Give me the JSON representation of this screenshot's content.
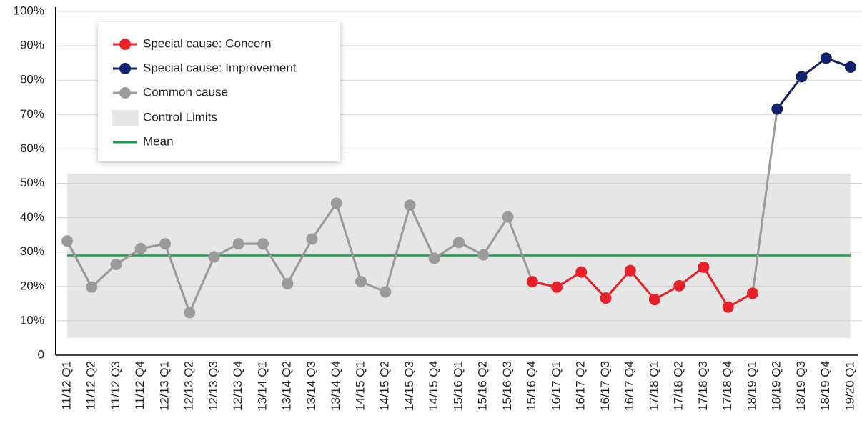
{
  "chart_data": {
    "type": "line",
    "categories": [
      "11/12 Q1",
      "11/12 Q2",
      "11/12 Q3",
      "11/12 Q4",
      "12/13 Q1",
      "12/13 Q2",
      "12/13 Q3",
      "12/13 Q4",
      "13/14 Q1",
      "13/14 Q2",
      "13/14 Q3",
      "13/14 Q4",
      "14/15 Q1",
      "14/15 Q2",
      "14/15 Q3",
      "14/15 Q4",
      "15/16 Q1",
      "15/16 Q2",
      "15/16 Q3",
      "15/16 Q4",
      "16/17 Q1",
      "16/17 Q2",
      "16/17 Q3",
      "16/17 Q4",
      "17/18 Q1",
      "17/18 Q2",
      "17/18 Q3",
      "17/18 Q4",
      "18/19 Q1",
      "18/19 Q2",
      "18/19 Q3",
      "18/19 Q4",
      "19/20 Q1"
    ],
    "series": [
      {
        "name": "Special cause: Concern",
        "color": "#e8202a",
        "values": [
          null,
          null,
          null,
          null,
          null,
          null,
          null,
          null,
          null,
          null,
          null,
          null,
          null,
          null,
          null,
          null,
          null,
          null,
          null,
          21.4,
          19.8,
          24.2,
          16.6,
          24.6,
          16.2,
          20.2,
          25.6,
          14,
          18,
          null,
          null,
          null,
          null
        ]
      },
      {
        "name": "Special cause: Improvement",
        "color": "#12216b",
        "values": [
          null,
          null,
          null,
          null,
          null,
          null,
          null,
          null,
          null,
          null,
          null,
          null,
          null,
          null,
          null,
          null,
          null,
          null,
          null,
          null,
          null,
          null,
          null,
          null,
          null,
          null,
          null,
          null,
          null,
          71.6,
          81,
          86.4,
          83.8
        ]
      },
      {
        "name": "Common cause",
        "color": "#9b9b9b",
        "values": [
          33.2,
          19.8,
          26.4,
          31,
          32.4,
          12.4,
          28.6,
          32.4,
          32.4,
          20.8,
          33.8,
          44.2,
          21.4,
          18.4,
          43.6,
          28.2,
          32.8,
          29.2,
          40.2,
          null,
          null,
          null,
          null,
          null,
          null,
          null,
          null,
          null,
          null,
          null,
          null,
          null,
          null
        ]
      }
    ],
    "control_limits": {
      "name": "Control Limits",
      "color": "#e6e6e6",
      "lower": 5,
      "upper": 52.8
    },
    "mean": {
      "name": "Mean",
      "color": "#1a9c4a",
      "value": 29
    },
    "ylim": [
      0,
      100
    ],
    "yticks": [
      0,
      {
        "value": 10,
        "label": "10%"
      },
      {
        "value": 20,
        "label": "20%"
      },
      {
        "value": 30,
        "label": "30%"
      },
      {
        "value": 40,
        "label": "40%"
      },
      {
        "value": 50,
        "label": "50%"
      },
      {
        "value": 60,
        "label": "60%"
      },
      {
        "value": 70,
        "label": "70%"
      },
      {
        "value": 80,
        "label": "80%"
      },
      {
        "value": 90,
        "label": "90%"
      },
      {
        "value": 100,
        "label": "100%"
      }
    ],
    "grid": true,
    "legend": "top-left"
  }
}
